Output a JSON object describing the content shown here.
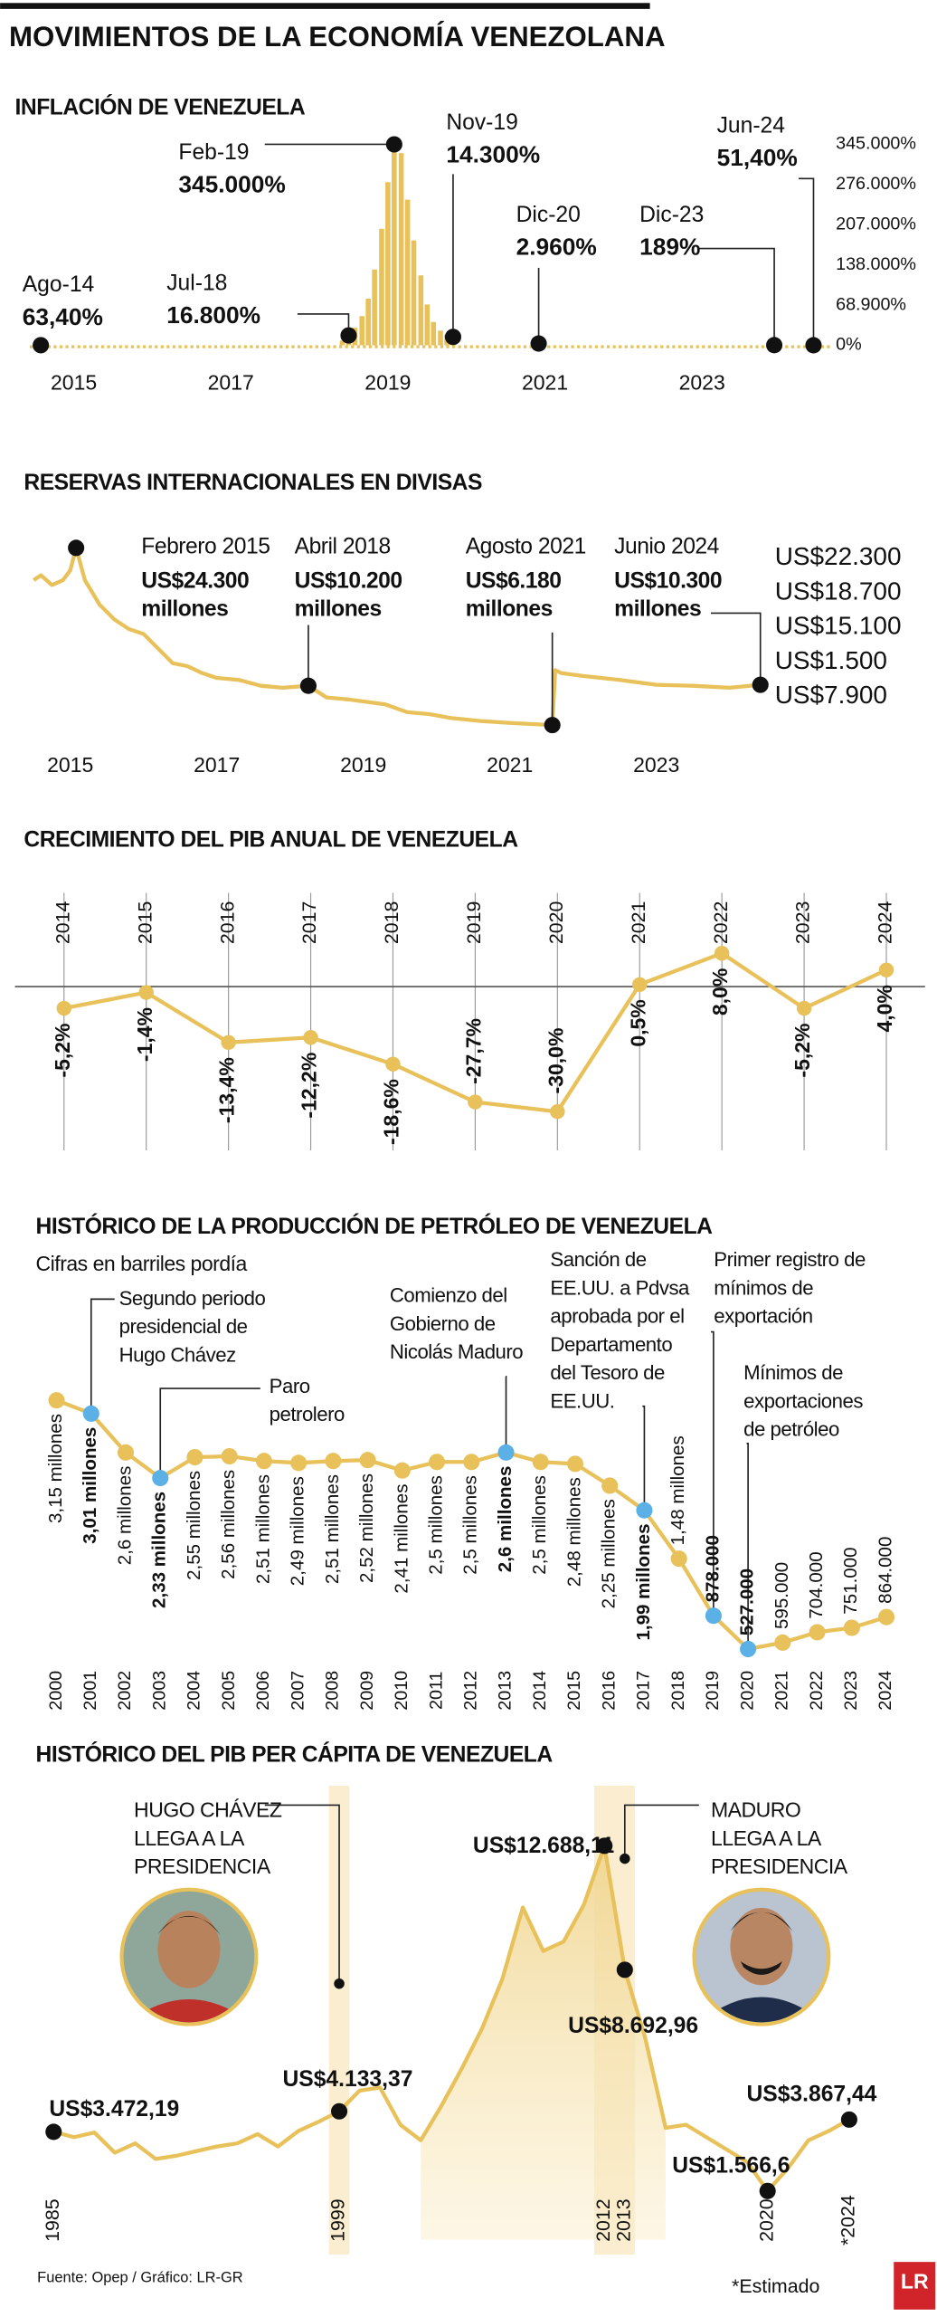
{
  "title": "MOVIMIENTOS DE LA ECONOMÍA VENEZOLANA",
  "chart_data": [
    {
      "type": "bar",
      "title": "INFLACIÓN DE VENEZUELA",
      "color": "#e8c15a",
      "x": [
        2018.42,
        2018.5,
        2018.58,
        2018.67,
        2018.75,
        2018.83,
        2018.92,
        2019.0,
        2019.08,
        2019.17,
        2019.25,
        2019.33,
        2019.42,
        2019.5,
        2019.58,
        2019.67,
        2019.75,
        2019.83
      ],
      "values": [
        8000,
        16800,
        30000,
        50000,
        80000,
        130000,
        200000,
        280000,
        345000,
        330000,
        250000,
        180000,
        120000,
        70000,
        40000,
        25000,
        18000,
        14300
      ],
      "xlim": [
        2014.44,
        2024.95
      ],
      "ylim": [
        0,
        345000
      ],
      "xticks": [
        2015,
        2017,
        2019,
        2021,
        2023
      ],
      "yticks": [
        {
          "value": 345000,
          "label": "345.000%"
        },
        {
          "value": 276000,
          "label": "276.000%"
        },
        {
          "value": 207000,
          "label": "207.000%"
        },
        {
          "value": 138000,
          "label": "138.000%"
        },
        {
          "value": 68900,
          "label": "68.900%"
        },
        {
          "value": 0,
          "label": "0%"
        }
      ],
      "annotations": [
        {
          "date": "Ago-14",
          "x": 2014.58,
          "value": 63.4,
          "value_label": "63,40%"
        },
        {
          "date": "Jul-18",
          "x": 2018.5,
          "value": 16800,
          "value_label": "16.800%"
        },
        {
          "date": "Feb-19",
          "x": 2019.08,
          "value": 345000,
          "value_label": "345.000%"
        },
        {
          "date": "Nov-19",
          "x": 2019.83,
          "value": 14300,
          "value_label": "14.300%"
        },
        {
          "date": "Dic-20",
          "x": 2020.92,
          "value": 2960,
          "value_label": "2.960%"
        },
        {
          "date": "Dic-23",
          "x": 2023.92,
          "value": 189,
          "value_label": "189%"
        },
        {
          "date": "Jun-24",
          "x": 2024.42,
          "value": 51.4,
          "value_label": "51,40%"
        }
      ]
    },
    {
      "type": "line",
      "title": "RESERVAS INTERNACIONALES EN DIVISAS",
      "color": "#e8c15a",
      "x": [
        2014.5,
        2014.6,
        2014.75,
        2014.9,
        2015.0,
        2015.08,
        2015.2,
        2015.4,
        2015.6,
        2015.8,
        2016.0,
        2016.2,
        2016.4,
        2016.6,
        2016.8,
        2017.0,
        2017.3,
        2017.6,
        2017.9,
        2018.25,
        2018.5,
        2018.8,
        2019.0,
        2019.3,
        2019.6,
        2019.9,
        2020.2,
        2020.6,
        2021.0,
        2021.58,
        2021.62,
        2021.7,
        2022.0,
        2022.5,
        2023.0,
        2023.5,
        2024.0,
        2024.42
      ],
      "values": [
        21000,
        21500,
        20500,
        21000,
        22000,
        24300,
        21000,
        18500,
        17000,
        16000,
        15500,
        14000,
        12500,
        12200,
        11500,
        11000,
        10800,
        10200,
        10000,
        10200,
        9000,
        8800,
        8600,
        8300,
        7500,
        7300,
        6900,
        6600,
        6400,
        6180,
        11800,
        11500,
        11200,
        10800,
        10300,
        10200,
        10000,
        10300
      ],
      "xlim": [
        2014.3,
        2024.8
      ],
      "ylim": [
        5000,
        26000
      ],
      "xticks": [
        2015,
        2017,
        2019,
        2021,
        2023
      ],
      "axis_labels": [
        "US$22.300",
        "US$18.700",
        "US$15.100",
        "US$1.500",
        "US$7.900"
      ],
      "annotations": [
        {
          "date": "Febrero 2015",
          "x": 2015.08,
          "value": 24300,
          "value_label": "US$24.300 millones"
        },
        {
          "date": "Abril 2018",
          "x": 2018.25,
          "value": 10200,
          "value_label": "US$10.200 millones"
        },
        {
          "date": "Agosto 2021",
          "x": 2021.58,
          "value": 6180,
          "value_label": "US$6.180 millones"
        },
        {
          "date": "Junio 2024",
          "x": 2024.42,
          "value": 10300,
          "value_label": "US$10.300 millones"
        }
      ]
    },
    {
      "type": "line",
      "title": "CRECIMIENTO DEL PIB ANUAL DE VENEZUELA",
      "color": "#e8c15a",
      "categories": [
        "2014",
        "2015",
        "2016",
        "2017",
        "2018",
        "2019",
        "2020",
        "2021",
        "2022",
        "2023",
        "2024"
      ],
      "values": [
        -5.2,
        -1.4,
        -13.4,
        -12.2,
        -18.6,
        -27.7,
        -30.0,
        0.5,
        8.0,
        -5.2,
        4.0
      ],
      "value_labels": [
        "-5,2%",
        "-1,4%",
        "-13,4%",
        "-12,2%",
        "-18,6%",
        "-27,7%",
        "-30,0%",
        "0,5%",
        "8,0%",
        "-5,2%",
        "4,0%"
      ],
      "ylim": [
        -35,
        15
      ]
    },
    {
      "type": "line",
      "title": "HISTÓRICO DE LA PRODUCCIÓN DE PETRÓLEO DE VENEZUELA",
      "subtitle": "Cifras en barriles pordía",
      "color": "#e8c15a",
      "categories": [
        "2000",
        "2001",
        "2002",
        "2003",
        "2004",
        "2005",
        "2006",
        "2007",
        "2008",
        "2009",
        "2010",
        "2011",
        "2012",
        "2013",
        "2014",
        "2015",
        "2016",
        "2017",
        "2018",
        "2019",
        "2020",
        "2021",
        "2022",
        "2023",
        "2024"
      ],
      "values": [
        3150000,
        3010000,
        2600000,
        2330000,
        2550000,
        2560000,
        2510000,
        2490000,
        2510000,
        2520000,
        2410000,
        2500000,
        2500000,
        2600000,
        2500000,
        2480000,
        2250000,
        1990000,
        1480000,
        878000,
        527000,
        595000,
        704000,
        751000,
        864000
      ],
      "value_labels": [
        "3,15 millones",
        "3,01 millones",
        "2,6 millones",
        "2,33 millones",
        "2,55 millones",
        "2,56 millones",
        "2,51 millones",
        "2,49 millones",
        "2,51 millones",
        "2,52 millones",
        "2,41 millones",
        "2,5 millones",
        "2,5 millones",
        "2,6 millones",
        "2,5 millones",
        "2,48 millones",
        "2,25 millones",
        "1,99 millones",
        "1,48 millones",
        "878.000",
        "527.000",
        "595.000",
        "704.000",
        "751.000",
        "864.000"
      ],
      "point_colors": [
        "#e8c15a",
        "#5bb0e6",
        "#e8c15a",
        "#5bb0e6",
        "#e8c15a",
        "#e8c15a",
        "#e8c15a",
        "#e8c15a",
        "#e8c15a",
        "#e8c15a",
        "#e8c15a",
        "#e8c15a",
        "#e8c15a",
        "#5bb0e6",
        "#e8c15a",
        "#e8c15a",
        "#e8c15a",
        "#5bb0e6",
        "#e8c15a",
        "#5bb0e6",
        "#5bb0e6",
        "#e8c15a",
        "#e8c15a",
        "#e8c15a",
        "#e8c15a"
      ],
      "ylim": [
        0,
        3500000
      ],
      "annotations": [
        {
          "text": "Segundo periodo presidencial de Hugo Chávez",
          "category": "2001"
        },
        {
          "text": "Paro petrolero",
          "category": "2003"
        },
        {
          "text": "Comienzo del Gobierno de Nicolás Maduro",
          "category": "2013"
        },
        {
          "text": "Sanción de EE.UU. a Pdvsa aprobada por el Departamento del Tesoro de EE.UU.",
          "category": "2017"
        },
        {
          "text": "Primer registro de mínimos de exportación",
          "category": "2019"
        },
        {
          "text": "Mínimos de exportaciones de petróleo",
          "category": "2020"
        }
      ]
    },
    {
      "type": "line",
      "title": "HISTÓRICO DEL PIB PER CÁPITA DE VENEZUELA",
      "color": "#e8c15a",
      "x": [
        1985,
        1986,
        1987,
        1988,
        1989,
        1990,
        1991,
        1992,
        1993,
        1994,
        1995,
        1996,
        1997,
        1998,
        1999,
        2000,
        2001,
        2002,
        2003,
        2004,
        2005,
        2006,
        2007,
        2008,
        2009,
        2010,
        2011,
        2012,
        2013,
        2014,
        2015,
        2016,
        2017,
        2018,
        2019,
        2020,
        2021,
        2022,
        2023,
        2024
      ],
      "values": [
        3472.19,
        3300,
        3450,
        2800,
        3100,
        2600,
        2700,
        2850,
        3000,
        3100,
        3400,
        3000,
        3500,
        3800,
        4133.37,
        4800,
        4900,
        3700,
        3200,
        4300,
        5500,
        6800,
        8400,
        10700,
        9300,
        9600,
        10800,
        12688.11,
        8692.96,
        6500,
        3600,
        3700,
        3300,
        2900,
        2500,
        1566.6,
        2300,
        3200,
        3500,
        3867.44
      ],
      "value_labels": [
        "US$3.472,19",
        null,
        null,
        null,
        null,
        null,
        null,
        null,
        null,
        null,
        null,
        null,
        null,
        null,
        "US$4.133,37",
        null,
        null,
        null,
        null,
        null,
        null,
        null,
        null,
        null,
        null,
        null,
        null,
        "US$12.688,11",
        "US$8.692,96",
        null,
        null,
        null,
        null,
        null,
        null,
        "US$1.566,6",
        null,
        null,
        null,
        "US$3.867,44"
      ],
      "xlim": [
        1985,
        2024
      ],
      "ylim": [
        0,
        14000
      ],
      "xticks": [
        1985,
        1999,
        2012,
        2013,
        2020,
        {
          "value": 2024,
          "label": "*2024"
        }
      ],
      "highlight_periods": [
        [
          1999,
          1999
        ],
        [
          2012,
          2013
        ]
      ],
      "fill_between": [
        2003,
        2015
      ],
      "annotations": [
        {
          "text": "HUGO CHÁVEZ LLEGA A LA PRESIDENCIA",
          "x": 1999
        },
        {
          "text": "MADURO LLEGA A LA PRESIDENCIA",
          "x": 2013
        }
      ]
    }
  ],
  "source": "Fuente: Opep / Gráfico: LR-GR",
  "note": "*Estimado",
  "logo": "LR"
}
